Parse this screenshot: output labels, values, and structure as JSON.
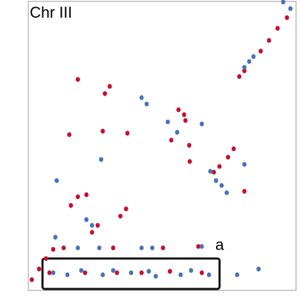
{
  "chart_data": {
    "type": "scatter",
    "title": "Chr III",
    "annotation": "a",
    "xlim": [
      0,
      100
    ],
    "ylim": [
      0,
      100
    ],
    "series": [
      {
        "color": "#c8102e",
        "x": [
          1.3,
          4.0,
          6.6,
          9.3,
          86.8,
          89.9,
          93.1,
          96.6,
          18.5,
          28.6,
          30.4,
          15.3,
          27.8,
          37.0,
          15.9,
          18.5,
          21.7,
          23.8,
          25.9,
          34.4,
          36.5,
          56.1,
          58.2,
          58.7,
          53.4,
          60.1,
          60.3,
          69.3,
          71.4,
          74.6,
          76.7,
          80.7,
          78.8,
          80.7,
          13.2,
          31.7,
          50.3,
          63.5,
          7.9,
          21.2,
          33.1,
          42.3,
          52.9,
          64.8
        ],
        "values": [
          3.7,
          7.4,
          11.0,
          14.2,
          82.8,
          86.5,
          90.7,
          94.4,
          73.0,
          68.1,
          70.6,
          53.9,
          55.1,
          54.4,
          29.4,
          32.4,
          33.1,
          20.1,
          22.5,
          25.7,
          28.2,
          62.5,
          60.8,
          58.8,
          52.0,
          50.2,
          44.6,
          40.9,
          42.9,
          46.1,
          49.0,
          34.3,
          74.0,
          76.0,
          14.7,
          14.7,
          14.7,
          15.2,
          6.1,
          6.1,
          6.1,
          6.1,
          6.6,
          6.1
        ]
      },
      {
        "color": "#4a72b8",
        "x": [
          95.2,
          97.9,
          80.7,
          82.5,
          84.1,
          42.3,
          44.2,
          52.1,
          55.6,
          64.8,
          68.0,
          70.1,
          72.2,
          74.1,
          80.7,
          27.2,
          10.6,
          21.7,
          23.8,
          10.1,
          18.5,
          26.5,
          42.3,
          46.3,
          64.8,
          9.3,
          14.6,
          19.8,
          27.8,
          31.7,
          38.4,
          45.0,
          47.6,
          56.9,
          60.8,
          67.5,
          78.0,
          86.0
        ],
        "values": [
          99.8,
          97.5,
          77.2,
          79.2,
          80.9,
          66.7,
          64.5,
          58.3,
          54.7,
          57.6,
          41.2,
          38.0,
          36.3,
          33.8,
          43.6,
          45.3,
          38.0,
          24.5,
          22.5,
          18.4,
          14.7,
          14.7,
          14.7,
          14.7,
          15.2,
          6.1,
          5.4,
          6.9,
          5.4,
          6.9,
          6.1,
          6.6,
          4.9,
          5.4,
          6.9,
          5.4,
          5.4,
          7.4
        ]
      }
    ]
  }
}
